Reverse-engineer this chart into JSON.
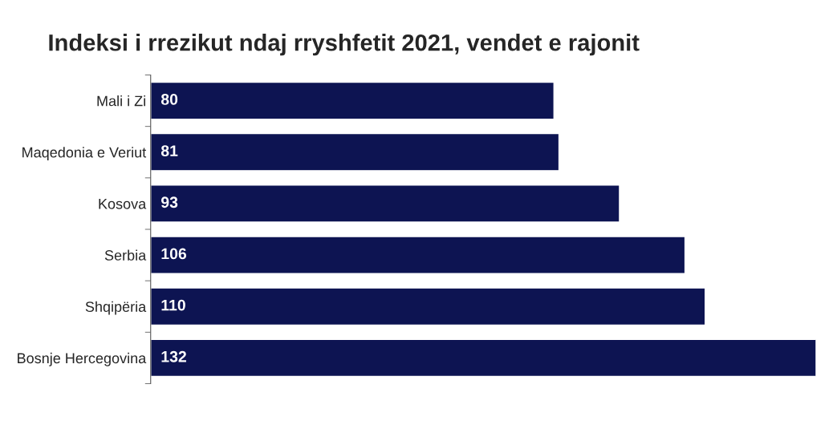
{
  "chart_data": {
    "type": "bar",
    "orientation": "horizontal",
    "title": "Indeksi i rrezikut ndaj rryshfetit 2021, vendet e rajonit",
    "categories": [
      "Mali i Zi",
      "Maqedonia e Veriut",
      "Kosova",
      "Serbia",
      "Shqipëria",
      "Bosnje Hercegovina"
    ],
    "values": [
      80,
      81,
      93,
      106,
      110,
      132
    ],
    "color": "#0d1452",
    "data_labels": true,
    "grid": false,
    "legend": false
  }
}
